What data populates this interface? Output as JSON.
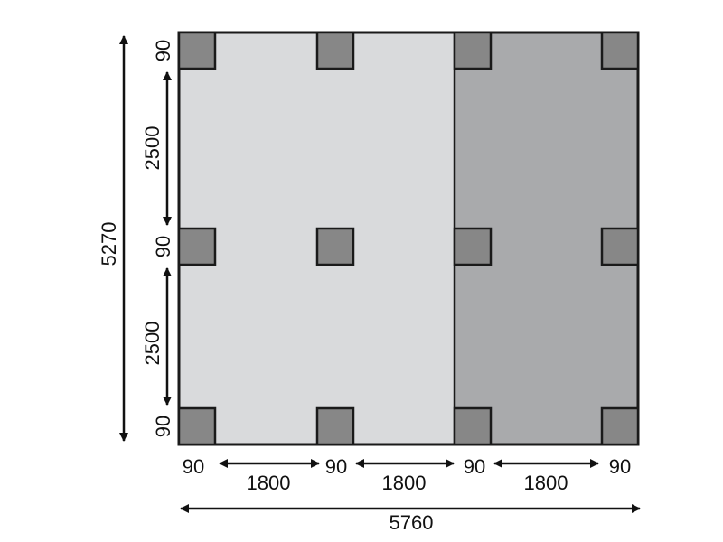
{
  "colors": {
    "left_section": "#d9dadc",
    "right_section": "#a9aaac",
    "post": "#878787",
    "outline": "#1a1a1a"
  },
  "vertical_dims": {
    "post_top": "90",
    "span_upper": "2500",
    "post_middle": "90",
    "span_lower": "2500",
    "post_bottom": "90",
    "total": "5270"
  },
  "horizontal_dims": {
    "post_1": "90",
    "span_1": "1800",
    "post_2": "90",
    "span_2": "1800",
    "post_3": "90",
    "span_3": "1800",
    "post_4": "90",
    "total": "5760"
  }
}
